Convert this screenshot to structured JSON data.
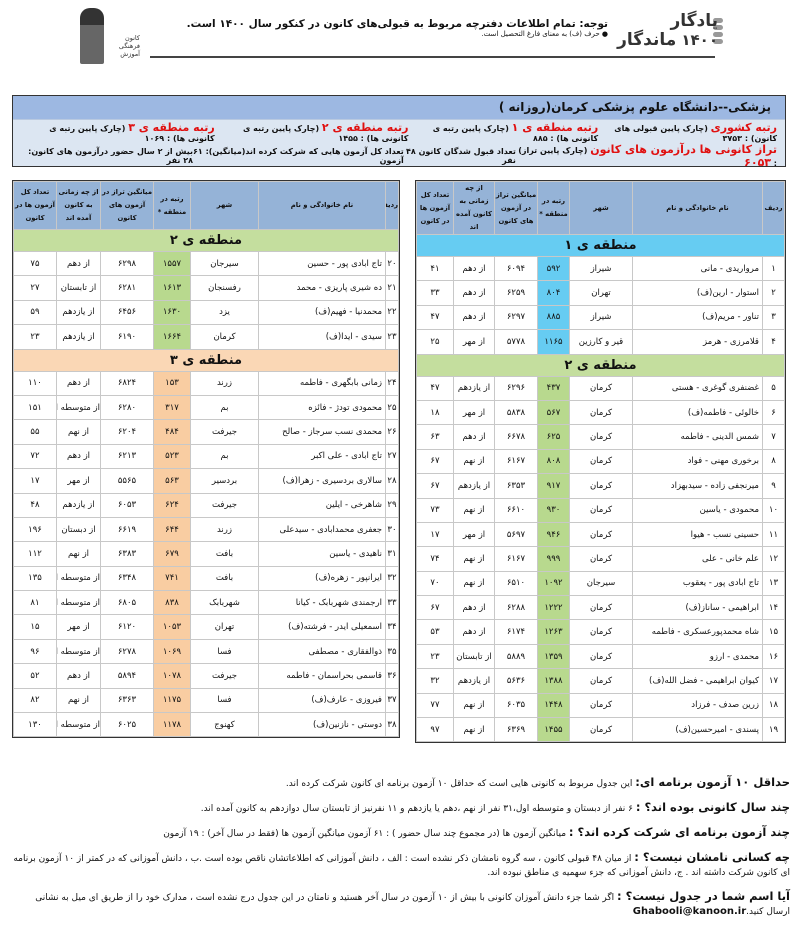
{
  "header": {
    "logo_line1": "یادگار",
    "logo_line2": "ماندگار",
    "logo_year": "۱۴۰۰",
    "notice": "توجه: تمام اطلاعات دفترچه مربوط به قبولی‌های کانون در کنکور سال ۱۴۰۰ است.",
    "footnote": "● حرف (ف) به معنای فارغ التحصیل است.",
    "kanoon_logo_text": "کانون فرهنگی آموزش"
  },
  "info": {
    "title": "پزشکی--دانشگاه علوم پزشکی کرمان(روزانه )",
    "row1": [
      {
        "label": "رتبه کشوری",
        "note": " (چارک پایین قبولی های کانون) : ",
        "value": "۳۷۵۳"
      },
      {
        "label": "رتبه منطقه ی ۱",
        "note": " (چارک پایین رتبه ی کانونی ها) : ",
        "value": "۸۸۵"
      },
      {
        "label": "رتبه منطقه ی ۲",
        "note": " (چارک پایین رتبه ی کانونی ها) : ",
        "value": "۱۴۵۵"
      },
      {
        "label": "رتبه منطقه ی ۳",
        "note": " (چارک پایین رتبه ی کانونی ها) : ",
        "value": "۱۰۶۹"
      }
    ],
    "row2": [
      {
        "label": "تراز کانونی ها درآزمون های کانون",
        "note": " (چارک پایین تراز) : ",
        "value": "۶۰۵۳"
      },
      {
        "text": "تعداد قبول شدگان کانون ۴۸ نفر"
      },
      {
        "text": "تعداد کل آزمون هایی که شرکت کرده اند(میانگین): ۶۱ آزمون"
      },
      {
        "text": "بیش از ۲ سال حضور درآزمون های کانون: ۲۸ نفر"
      }
    ]
  },
  "columns": [
    "ردیف",
    "نام خانوادگی و نام",
    "شهر",
    "رتبه در منطقه *",
    "میانگین تراز در آزمون های کانون",
    "از چه زمانی به کانون آمده اند",
    "تعداد کل آزمون ها در کانون"
  ],
  "colors": {
    "header": "#95b3d7",
    "region1": "#66ccf2",
    "region2": "#c4de9e",
    "region3": "#fad7b5",
    "label_red": "#e01010"
  },
  "right_table": [
    {
      "region": "منطقه ی ۱",
      "zone": 1,
      "rows": [
        [
          "۱",
          "مرواریدی - مانی",
          "شیراز",
          "۵۹۲",
          "۶۰۹۴",
          "از دهم",
          "۴۱"
        ],
        [
          "۲",
          "استوار - ارین(ف)",
          "تهران",
          "۸۰۴",
          "۶۲۵۹",
          "از دهم",
          "۳۳"
        ],
        [
          "۳",
          "تناور - مریم(ف)",
          "شیراز",
          "۸۸۵",
          "۶۲۹۷",
          "از دهم",
          "۴۷"
        ],
        [
          "۴",
          "قلامرزی - هرمز",
          "قیر و کارزین",
          "۱۱۶۵",
          "۵۷۷۸",
          "از مهر",
          "۲۵"
        ]
      ]
    },
    {
      "region": "منطقه ی ۲",
      "zone": 2,
      "rows": [
        [
          "۵",
          "غضنفری گوغری - هستی",
          "کرمان",
          "۴۳۷",
          "۶۲۹۶",
          "از یازدهم",
          "۴۷"
        ],
        [
          "۶",
          "خالوئی - فاطمه(ف)",
          "کرمان",
          "۵۶۷",
          "۵۸۳۸",
          "از مهر",
          "۱۸"
        ],
        [
          "۷",
          "شمس الدینی - فاطمه",
          "کرمان",
          "۶۲۵",
          "۶۶۷۸",
          "از دهم",
          "۶۳"
        ],
        [
          "۸",
          "برخوری مهنی - فواد",
          "کرمان",
          "۸۰۸",
          "۶۱۶۷",
          "از نهم",
          "۶۷"
        ],
        [
          "۹",
          "میرنجفی زاده - سیدبهزاد",
          "کرمان",
          "۹۱۷",
          "۶۳۵۳",
          "از یازدهم",
          "۶۷"
        ],
        [
          "۱۰",
          "محمودی - یاسین",
          "کرمان",
          "۹۳۰",
          "۶۶۱۰",
          "از نهم",
          "۷۳"
        ],
        [
          "۱۱",
          "حسینی نسب - هیوا",
          "کرمان",
          "۹۴۶",
          "۵۶۹۷",
          "از مهر",
          "۱۷"
        ],
        [
          "۱۲",
          "علم خانی - علی",
          "کرمان",
          "۹۹۹",
          "۶۱۶۷",
          "از نهم",
          "۷۴"
        ],
        [
          "۱۳",
          "تاج ابادی پور - یعقوب",
          "سیرجان",
          "۱۰۹۲",
          "۶۵۱۰",
          "از نهم",
          "۷۰"
        ],
        [
          "۱۴",
          "ابراهیمی - ساناز(ف)",
          "کرمان",
          "۱۲۲۲",
          "۶۲۸۸",
          "از دهم",
          "۶۷"
        ],
        [
          "۱۵",
          "شاه محمدپورعسکری - فاطمه",
          "کرمان",
          "۱۲۶۳",
          "۶۱۷۴",
          "از دهم",
          "۵۳"
        ],
        [
          "۱۶",
          "محمدی - ارزو",
          "کرمان",
          "۱۳۵۹",
          "۵۸۸۹",
          "از تابستان",
          "۲۳"
        ],
        [
          "۱۷",
          "کیوان ابراهیمی - فضل الله(ف)",
          "کرمان",
          "۱۳۸۸",
          "۵۶۳۶",
          "از یازدهم",
          "۳۲"
        ],
        [
          "۱۸",
          "زرین صدف - فرزاد",
          "کرمان",
          "۱۴۴۸",
          "۶۰۳۵",
          "از نهم",
          "۷۷"
        ],
        [
          "۱۹",
          "پسندی - امیرحسین(ف)",
          "کرمان",
          "۱۴۵۵",
          "۶۳۶۹",
          "از نهم",
          "۹۷"
        ]
      ]
    }
  ],
  "left_table": [
    {
      "region": "منطقه ی ۲",
      "zone": 2,
      "rows": [
        [
          "۲۰",
          "تاج ابادی پور - حسین",
          "سیرجان",
          "۱۵۵۷",
          "۶۲۹۸",
          "از دهم",
          "۷۵"
        ],
        [
          "۲۱",
          "ده شیری پاریزی - محمد",
          "رفسنجان",
          "۱۶۱۳",
          "۶۲۸۱",
          "از تابستان",
          "۲۷"
        ],
        [
          "۲۲",
          "محمدنیا - فهیم(ف)",
          "یزد",
          "۱۶۳۰",
          "۶۴۵۶",
          "از یازدهم",
          "۵۹"
        ],
        [
          "۲۳",
          "سیدی - ایدا(ف)",
          "کرمان",
          "۱۶۶۴",
          "۶۱۹۰",
          "از یازدهم",
          "۲۳"
        ]
      ]
    },
    {
      "region": "منطقه ی ۳",
      "zone": 3,
      "rows": [
        [
          "۲۴",
          "زمانی بابگهری - فاطمه",
          "زرند",
          "۱۵۳",
          "۶۸۲۴",
          "از دهم",
          "۱۱۰"
        ],
        [
          "۲۵",
          "محمودی تودژ - فائزه",
          "بم",
          "۳۱۷",
          "۶۲۸۰",
          "از متوسطه اول",
          "۱۵۱"
        ],
        [
          "۲۶",
          "محمدی نسب سرجاز - صالح",
          "جیرفت",
          "۴۸۴",
          "۶۲۰۴",
          "از نهم",
          "۵۵"
        ],
        [
          "۲۷",
          "تاج ابادی - علی اکبر",
          "بم",
          "۵۲۳",
          "۶۲۱۳",
          "از دهم",
          "۷۲"
        ],
        [
          "۲۸",
          "سالاری بردسیری - زهرا(ف)",
          "بردسیر",
          "۵۶۳",
          "۵۵۶۵",
          "از مهر",
          "۱۷"
        ],
        [
          "۲۹",
          "شاهرخی - ایلین",
          "جیرفت",
          "۶۲۴",
          "۶۰۵۳",
          "از یازدهم",
          "۴۸"
        ],
        [
          "۳۰",
          "جعفری محمدابادی - سیدعلی",
          "زرند",
          "۶۴۴",
          "۶۶۱۹",
          "از دبستان",
          "۱۹۶"
        ],
        [
          "۳۱",
          "ناهیدی - یاسین",
          "بافت",
          "۶۷۹",
          "۶۳۸۳",
          "از نهم",
          "۱۱۲"
        ],
        [
          "۳۲",
          "ایرانپور - زهره(ف)",
          "بافت",
          "۷۴۱",
          "۶۳۴۸",
          "از متوسطه اول",
          "۱۳۵"
        ],
        [
          "۳۳",
          "ارجمندی شهربابک - کیانا",
          "شهربابک",
          "۸۳۸",
          "۶۸۰۵",
          "از متوسطه اول",
          "۸۱"
        ],
        [
          "۳۴",
          "اسمعیلی ایدر - فرشته(ف)",
          "تهران",
          "۱۰۵۳",
          "۶۱۲۰",
          "از مهر",
          "۱۵"
        ],
        [
          "۳۵",
          "ذوالفقاری - مصطفی",
          "فسا",
          "۱۰۶۹",
          "۶۲۷۸",
          "از متوسطه اول",
          "۹۶"
        ],
        [
          "۳۶",
          "قاسمی بحراسمان - فاطمه",
          "جیرفت",
          "۱۰۷۸",
          "۵۸۹۴",
          "از دهم",
          "۵۲"
        ],
        [
          "۳۷",
          "فیروزی - عارف(ف)",
          "فسا",
          "۱۱۷۵",
          "۶۳۶۳",
          "از نهم",
          "۸۲"
        ],
        [
          "۳۸",
          "دوستی - نازنین(ف)",
          "کهنوج",
          "۱۱۷۸",
          "۶۰۲۵",
          "از متوسطه اول",
          "۱۳۰"
        ]
      ]
    }
  ],
  "notes": [
    {
      "q": "حداقل ۱۰ آزمون برنامه ای:",
      "a": " این جدول مربوط به کانونی هایی است که حداقل ۱۰ آزمون برنامه ای کانون شرکت کرده اند."
    },
    {
      "q": "چند سال کانونی بوده اند؟ :",
      "a": " ۶ نفر از دبستان و متوسطه اول،۳۱ نفر از نهم ،دهم یا یازدهم و ۱۱ نفرنیز از تابستان سال دوازدهم به کانون آمده اند."
    },
    {
      "q": "چند آزمون برنامه ای شرکت کرده اند؟ :",
      "a": " میانگین آزمون ها (در مجموع چند سال حضور ) : ۶۱ آزمون      میانگین آزمون ها (فقط در سال آخر) : ۱۹ آزمون"
    },
    {
      "q": "چه کسانی نامشان نیست؟ :",
      "a": " از میان ۴۸ قبولی کانون ، سه گروه نامشان ذکر نشده است : الف ، دانش آموزانی که اطلاعاتشان ناقص بوده است .ب ، دانش آموزانی که در کمتر از ۱۰ آزمون برنامه ای کانون شرکت داشته اند . ج، دانش آموزانی که جزء سهمیه ی مناطق نبوده اند."
    },
    {
      "q": "آیا اسم شما در جدول نیست؟ :",
      "a": " اگر شما جزء دانش آموزان کانونی با بیش از ۱۰ آزمون در سال آخر هستید و نامتان در این جدول درج نشده است ، مدارک خود را از طریق ای میل به نشانی ",
      "email": "Ghabooli@kanoon.ir",
      "tail": "ارسال کنید."
    }
  ]
}
